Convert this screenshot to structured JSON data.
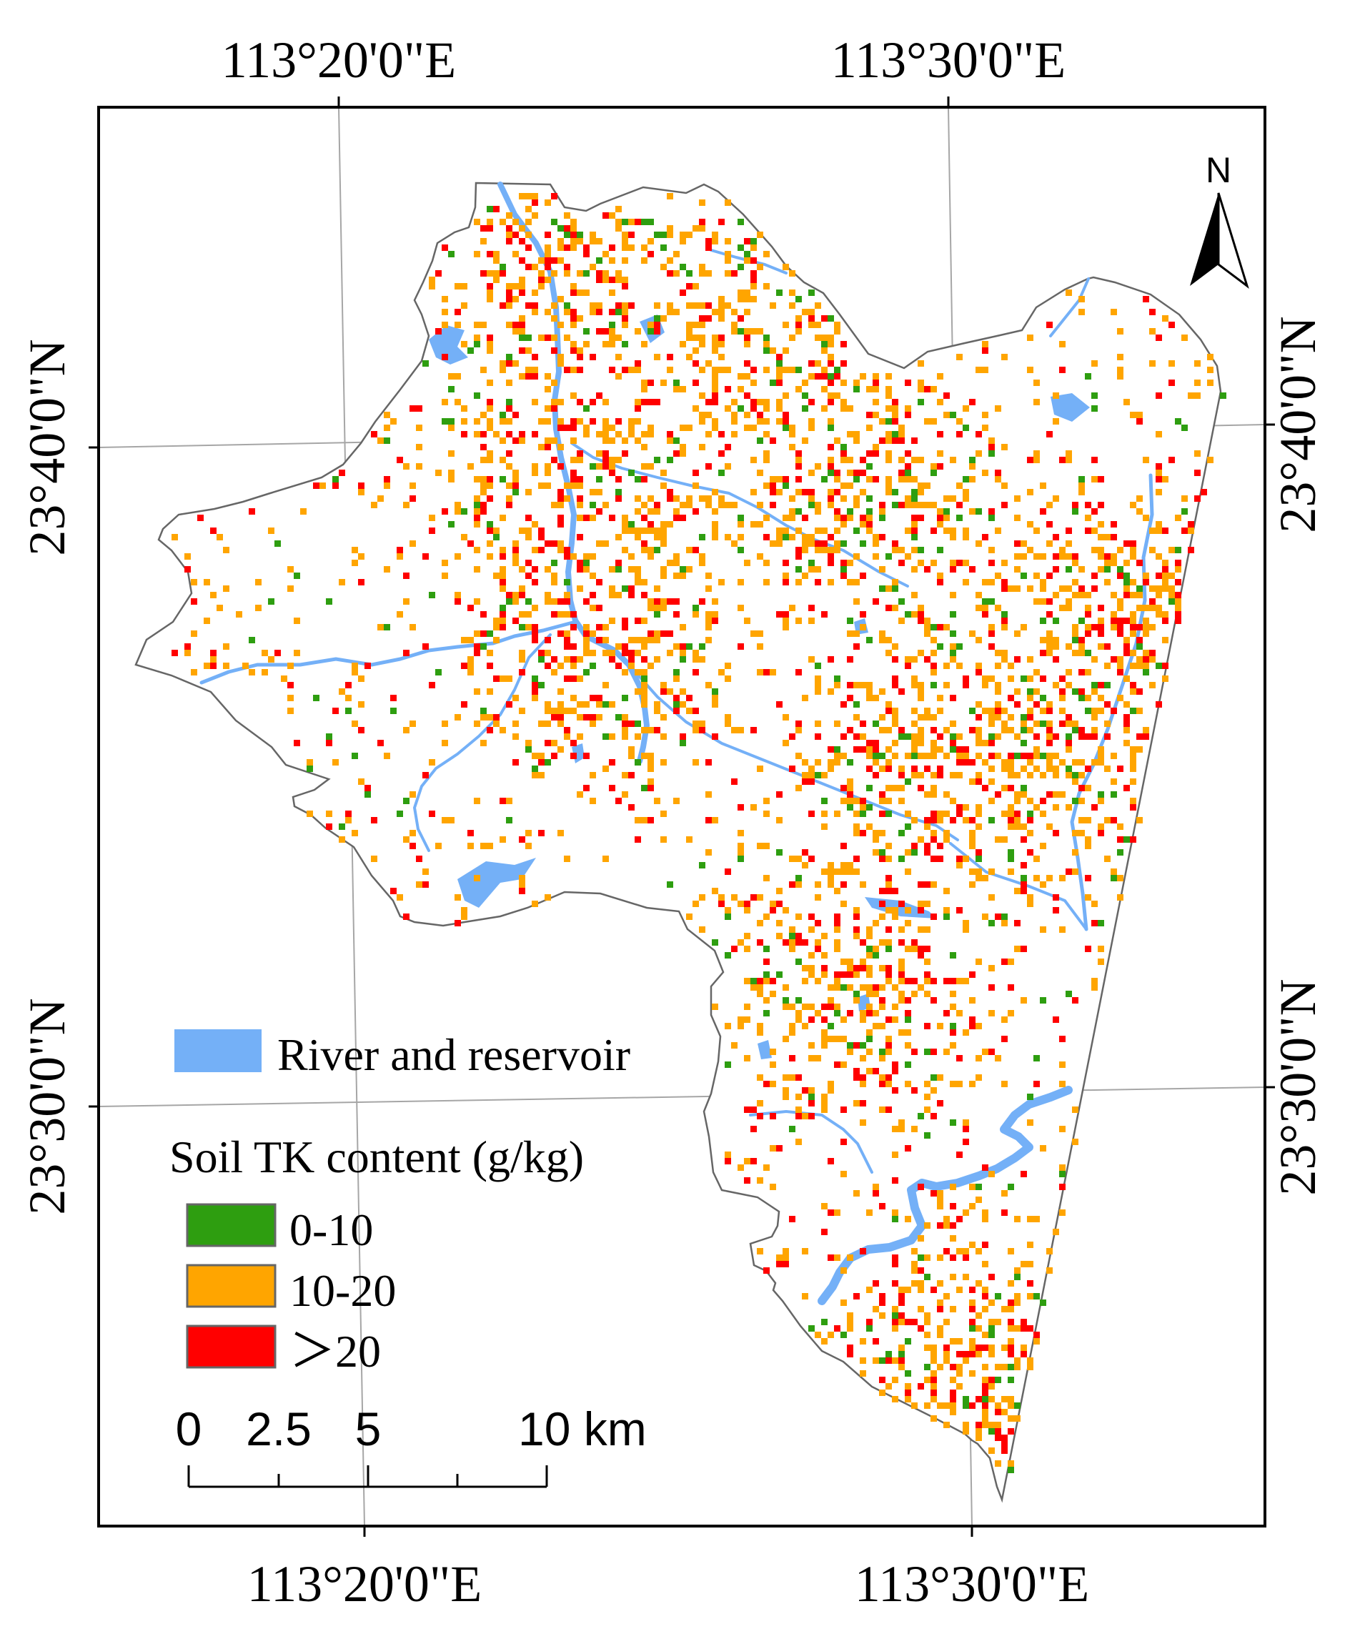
{
  "graticule": {
    "top_labels": [
      "113°20'0\"E",
      "113°30'0\"E"
    ],
    "bottom_labels": [
      "113°20'0\"E",
      "113°30'0\"E"
    ],
    "left_labels": [
      "23°40'0\"N",
      "23°30'0\"N"
    ],
    "right_labels": [
      "23°40'0\"N",
      "23°30'0\"N"
    ]
  },
  "north_arrow": {
    "label": "N",
    "icon": "north-arrow-icon"
  },
  "legend": {
    "water": {
      "label": "River and reservoir",
      "color": "#74b0f7"
    },
    "title": "Soil TK content (g/kg)",
    "classes": [
      {
        "label": "0-10",
        "color": "#2e9e10"
      },
      {
        "label": "10-20",
        "color": "#ffa500"
      },
      {
        "label": "＞20",
        "color": "#ff0000"
      }
    ]
  },
  "scale_bar": {
    "ticks": [
      "0",
      "2.5",
      "5",
      "10 km"
    ]
  },
  "colors": {
    "boundary": "#666666",
    "graticule": "#a6a6a6",
    "frame": "#000000"
  }
}
